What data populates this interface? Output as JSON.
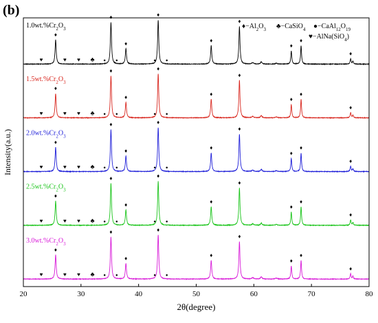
{
  "panel_label": "(b)",
  "chart_data": {
    "type": "line",
    "title": "",
    "xlabel": "2θ(degree)",
    "ylabel": "Intensity(a.u.)",
    "xlim": [
      20,
      80
    ],
    "x_ticks": [
      "20",
      "30",
      "40",
      "50",
      "60",
      "70",
      "80"
    ],
    "y_ticks": "none",
    "grid": false,
    "stacked_offset": true,
    "legend": {
      "placement": "top-right",
      "entries": [
        {
          "marker": "♦",
          "label": "−Al",
          "sub1": "2",
          "mid": "O",
          "sub2": "3"
        },
        {
          "marker": "♣",
          "label": "−CaSiO",
          "sub1": "4",
          "mid": "",
          "sub2": ""
        },
        {
          "marker": "●",
          "label": "−CaAl",
          "sub1": "12",
          "mid": "O",
          "sub2": "19"
        },
        {
          "marker": "♥",
          "label": "−AlNa(SiO",
          "sub1": "4",
          "mid": ")",
          "sub2": ""
        }
      ]
    },
    "series": [
      {
        "name": "1.0wt.%Cr2O3",
        "label_main": "1.0wt.%Cr",
        "label_sub1": "2",
        "label_mid": "O",
        "label_sub2": "3",
        "color": "#000000"
      },
      {
        "name": "1.5wt.%Cr2O3",
        "label_main": "1.5wt.%Cr",
        "label_sub1": "2",
        "label_mid": "O",
        "label_sub2": "3",
        "color": "#d8241c"
      },
      {
        "name": "2.0wt.%Cr2O3",
        "label_main": "2.0wt.%Cr",
        "label_sub1": "2",
        "label_mid": "O",
        "label_sub2": "3",
        "color": "#1c1cd8"
      },
      {
        "name": "2.5wt.%Cr2O3",
        "label_main": "2.5wt.%Cr",
        "label_sub1": "2",
        "label_mid": "O",
        "label_sub2": "3",
        "color": "#18c418"
      },
      {
        "name": "3.0wt.%Cr2O3",
        "label_main": "3.0wt.%Cr",
        "label_sub1": "2",
        "label_mid": "O",
        "label_sub2": "3",
        "color": "#d818d8"
      }
    ],
    "peaks": [
      {
        "x": 25.6,
        "h": 0.55,
        "w": 0.12
      },
      {
        "x": 35.2,
        "h": 0.95,
        "w": 0.12
      },
      {
        "x": 37.8,
        "h": 0.35,
        "w": 0.12
      },
      {
        "x": 43.4,
        "h": 1.0,
        "w": 0.12
      },
      {
        "x": 52.6,
        "h": 0.42,
        "w": 0.12
      },
      {
        "x": 57.5,
        "h": 0.85,
        "w": 0.12
      },
      {
        "x": 61.3,
        "h": 0.05,
        "w": 0.15
      },
      {
        "x": 66.5,
        "h": 0.3,
        "w": 0.1
      },
      {
        "x": 68.2,
        "h": 0.42,
        "w": 0.1
      },
      {
        "x": 76.8,
        "h": 0.12,
        "w": 0.1
      },
      {
        "x": 77.2,
        "h": 0.06,
        "w": 0.1
      },
      {
        "x": 59.8,
        "h": 0.03,
        "w": 0.2
      },
      {
        "x": 63.9,
        "h": 0.02,
        "w": 0.2
      }
    ],
    "phase_markers": [
      {
        "symbol": "♥",
        "x": 23.1,
        "level": "base"
      },
      {
        "symbol": "♥",
        "x": 27.2,
        "level": "base"
      },
      {
        "symbol": "♥",
        "x": 29.6,
        "level": "base"
      },
      {
        "symbol": "♣",
        "x": 32.0,
        "level": "base"
      },
      {
        "symbol": "●",
        "x": 34.1,
        "level": "base"
      },
      {
        "symbol": "♦",
        "x": 25.6,
        "level": "peak",
        "peak": 0
      },
      {
        "symbol": "♦",
        "x": 35.2,
        "level": "peak",
        "peak": 1
      },
      {
        "symbol": "●",
        "x": 36.2,
        "level": "base"
      },
      {
        "symbol": "♦",
        "x": 37.8,
        "level": "peak",
        "peak": 2
      },
      {
        "symbol": "●",
        "x": 42.8,
        "level": "base"
      },
      {
        "symbol": "♦",
        "x": 43.4,
        "level": "peak",
        "peak": 3
      },
      {
        "symbol": "●",
        "x": 44.9,
        "level": "base"
      },
      {
        "symbol": "♦",
        "x": 52.6,
        "level": "peak",
        "peak": 4
      },
      {
        "symbol": "♦",
        "x": 57.5,
        "level": "peak",
        "peak": 5
      },
      {
        "symbol": "♦",
        "x": 66.5,
        "level": "peak",
        "peak": 7
      },
      {
        "symbol": "♦",
        "x": 68.2,
        "level": "peak",
        "peak": 8
      },
      {
        "symbol": "♦",
        "x": 76.8,
        "level": "peak",
        "peak": 9
      }
    ]
  }
}
